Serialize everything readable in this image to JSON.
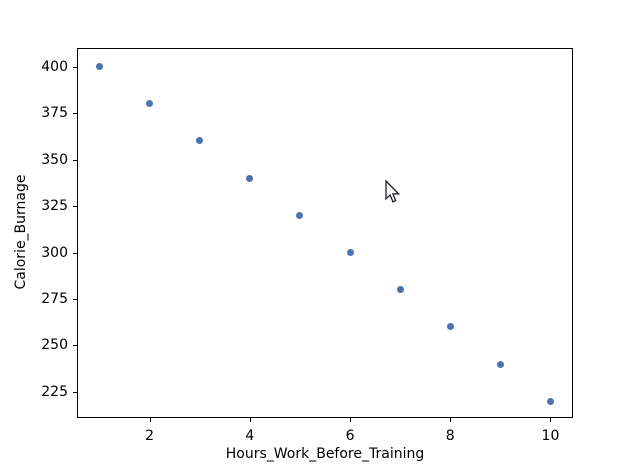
{
  "figure": {
    "background": "#ffffff",
    "spine_color": "#000000",
    "tick_color": "#000000",
    "text_color": "#000000"
  },
  "chart_data": {
    "type": "scatter",
    "title": "",
    "xlabel": "Hours_Work_Before_Training",
    "ylabel": "Calorie_Burnage",
    "x": [
      1,
      2,
      3,
      4,
      5,
      6,
      7,
      8,
      9,
      10
    ],
    "y": [
      400,
      380,
      360,
      340,
      320,
      300,
      280,
      260,
      240,
      220
    ],
    "xlim": [
      0.55,
      10.45
    ],
    "ylim": [
      211,
      410
    ],
    "xticks": [
      2,
      4,
      6,
      8,
      10
    ],
    "yticks": [
      225,
      250,
      275,
      300,
      325,
      350,
      375,
      400
    ],
    "grid": false,
    "legend": null,
    "marker_color": "#4c72b0",
    "marker_diameter_px": 7
  },
  "cursor": {
    "icon": "arrow-pointer"
  }
}
